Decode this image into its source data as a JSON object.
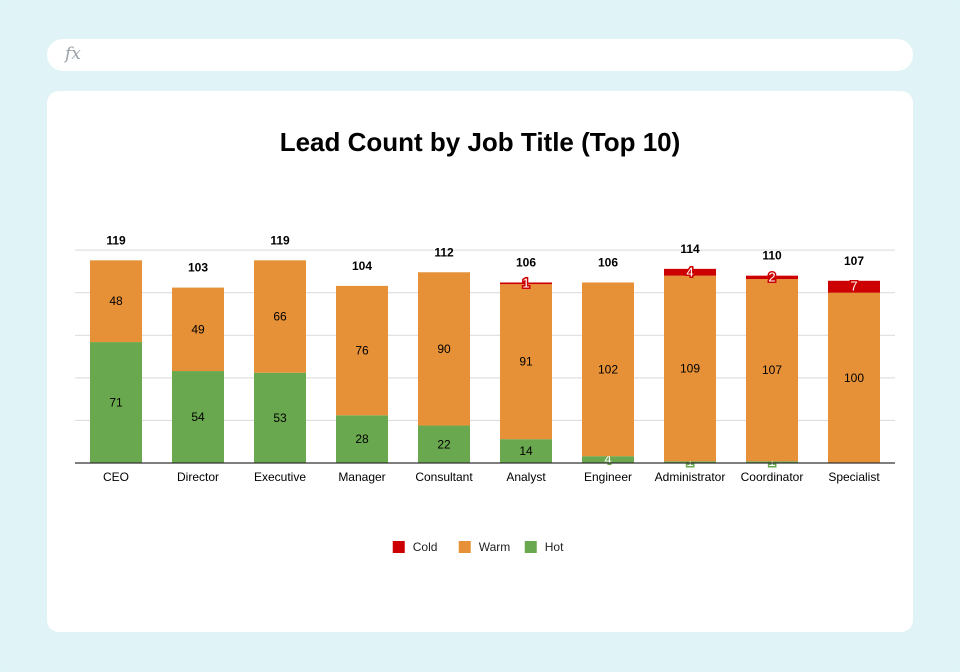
{
  "formula_bar": {
    "fx_label": "fx"
  },
  "chart_data": {
    "type": "bar",
    "stacked": true,
    "title": "Lead Count by Job Title (Top 10)",
    "xlabel": "",
    "ylabel": "",
    "ylim": [
      0,
      125
    ],
    "grid": true,
    "legend_position": "bottom",
    "categories": [
      "CEO",
      "Director",
      "Executive",
      "Manager",
      "Consultant",
      "Analyst",
      "Engineer",
      "Administrator",
      "Coordinator",
      "Specialist"
    ],
    "series": [
      {
        "name": "Hot",
        "color": "#6aa84f",
        "values": [
          71,
          54,
          53,
          28,
          22,
          14,
          4,
          1,
          1,
          0
        ]
      },
      {
        "name": "Warm",
        "color": "#e69138",
        "values": [
          48,
          49,
          66,
          76,
          90,
          91,
          102,
          109,
          107,
          100
        ]
      },
      {
        "name": "Cold",
        "color": "#cc0000",
        "values": [
          0,
          0,
          0,
          0,
          0,
          1,
          0,
          4,
          2,
          7
        ]
      }
    ],
    "totals": [
      119,
      103,
      119,
      104,
      112,
      106,
      106,
      114,
      110,
      107
    ],
    "legend_order": [
      "Cold",
      "Warm",
      "Hot"
    ]
  }
}
